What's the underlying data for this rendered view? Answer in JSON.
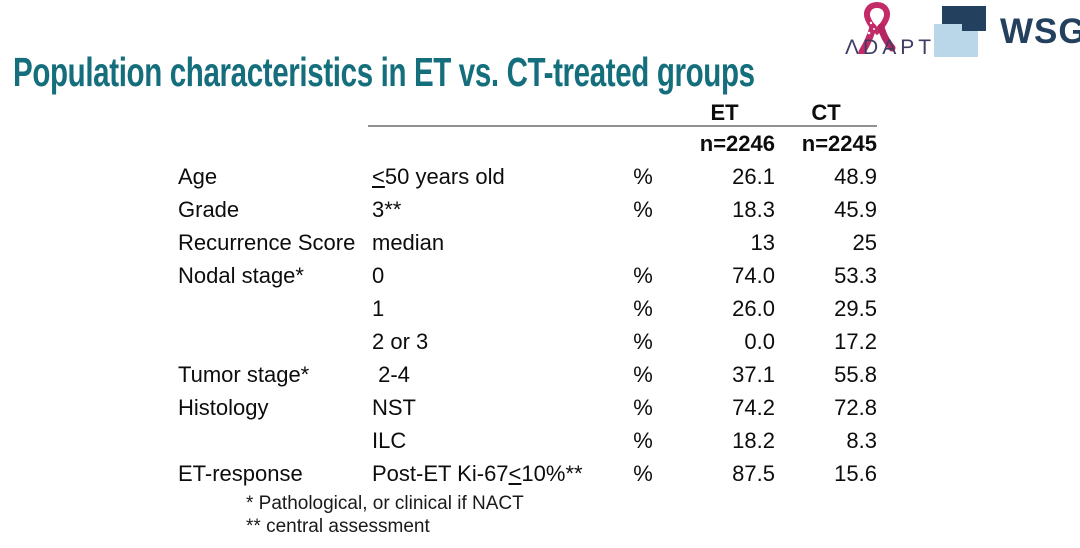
{
  "slide": {
    "title": "Population characteristics in ET vs. CT-treated groups",
    "title_color": "#156e7c"
  },
  "logos": {
    "adapt": {
      "display_text": "ΛDAPT",
      "ribbon_color": "#c42a68",
      "text_color": "#3e3c63"
    },
    "wsg": {
      "text": "WSG",
      "dark_color": "#24405f",
      "light_color": "#b9d7e8"
    }
  },
  "table": {
    "group_headers": [
      "ET",
      "CT"
    ],
    "n_headers": [
      "n=2246",
      "n=2245"
    ],
    "rows": [
      {
        "category": "Age",
        "sub": [
          {
            "t": "<",
            "u": true
          },
          {
            "t": "50 years old"
          }
        ],
        "unit": "%",
        "et": "26.1",
        "ct": "48.9"
      },
      {
        "category": "Grade",
        "sub": [
          {
            "t": "3**"
          }
        ],
        "unit": "%",
        "et": "18.3",
        "ct": "45.9"
      },
      {
        "category": "Recurrence Score",
        "sub": [
          {
            "t": "median"
          }
        ],
        "unit": "",
        "et": "13",
        "ct": "25"
      },
      {
        "category": "Nodal stage*",
        "sub": [
          {
            "t": "0"
          }
        ],
        "unit": "%",
        "et": "74.0",
        "ct": "53.3"
      },
      {
        "category": "",
        "sub": [
          {
            "t": "1"
          }
        ],
        "unit": "%",
        "et": "26.0",
        "ct": "29.5"
      },
      {
        "category": "",
        "sub": [
          {
            "t": "2 or 3"
          }
        ],
        "unit": "%",
        "et": "0.0",
        "ct": "17.2"
      },
      {
        "category": "Tumor stage*",
        "sub": [
          {
            "t": " 2-4"
          }
        ],
        "unit": "%",
        "et": "37.1",
        "ct": "55.8"
      },
      {
        "category": "Histology",
        "sub": [
          {
            "t": "NST"
          }
        ],
        "unit": "%",
        "et": "74.2",
        "ct": "72.8"
      },
      {
        "category": "",
        "sub": [
          {
            "t": "ILC"
          }
        ],
        "unit": "%",
        "et": "18.2",
        "ct": "8.3"
      },
      {
        "category": "ET-response",
        "sub": [
          {
            "t": "Post-ET Ki-67"
          },
          {
            "t": "<",
            "u": true
          },
          {
            "t": "10%**"
          }
        ],
        "unit": "%",
        "et": "87.5",
        "ct": "15.6"
      }
    ]
  },
  "footnotes": [
    "* Pathological, or clinical if NACT",
    "** central assessment"
  ]
}
